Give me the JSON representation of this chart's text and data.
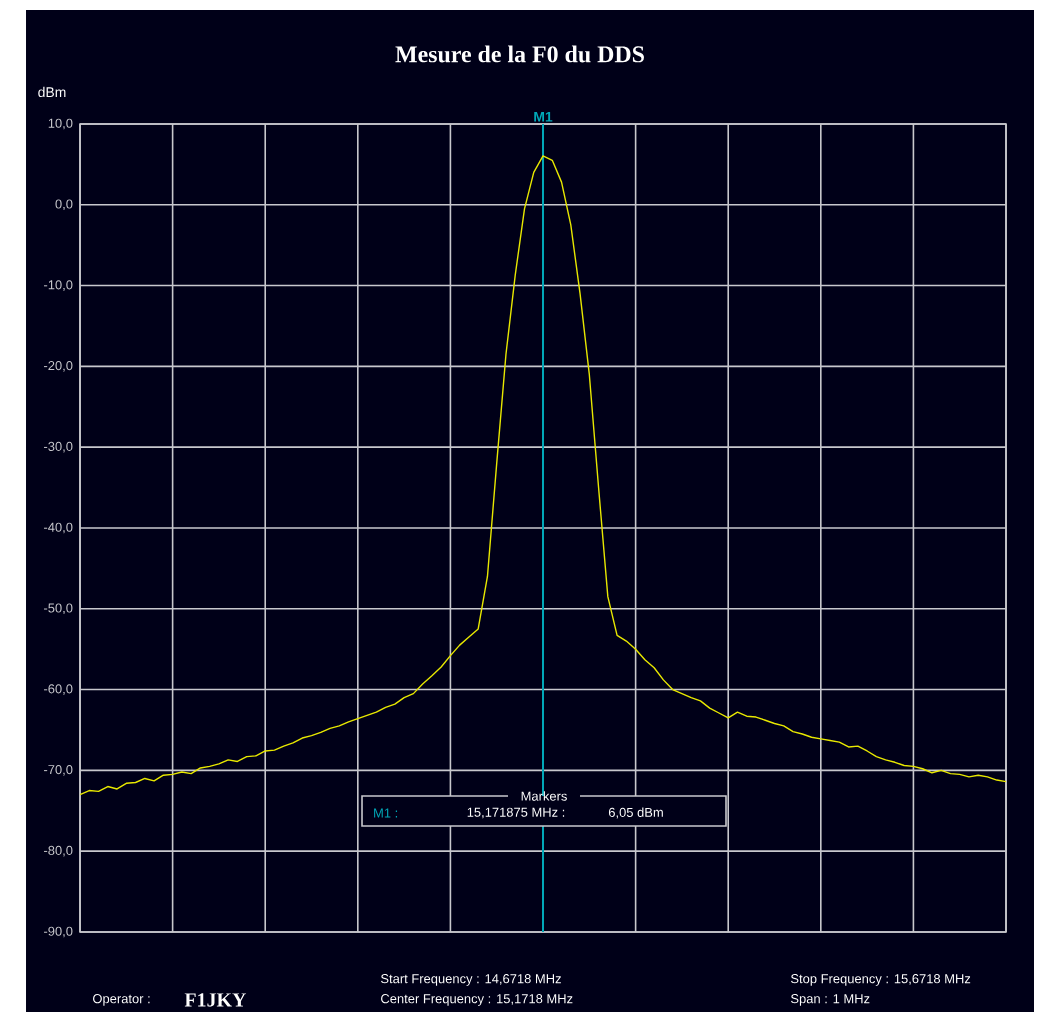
{
  "chart_data": {
    "type": "line",
    "title": "Mesure de la F0 du DDS",
    "ylabel": "dBm",
    "categories": [
      null,
      null,
      null,
      null,
      null,
      null,
      null,
      null,
      null,
      null,
      null,
      null,
      null,
      null,
      null,
      null,
      null,
      null,
      null,
      null,
      null,
      null,
      null,
      null,
      null,
      null,
      null,
      null,
      null,
      null,
      null,
      null,
      null,
      null,
      null,
      null,
      null,
      null,
      null,
      null,
      null,
      null,
      null,
      null,
      null,
      null,
      null,
      null,
      null,
      null,
      null,
      null,
      null,
      null,
      null,
      null,
      null,
      null,
      null,
      null,
      null,
      null,
      null,
      null,
      null,
      null,
      null,
      null,
      null,
      null,
      null,
      null,
      null,
      null,
      null,
      null,
      null,
      null,
      null,
      null,
      null,
      null,
      null,
      null,
      null,
      null,
      null,
      null,
      null,
      null,
      null,
      null,
      null,
      null,
      null,
      null,
      null,
      null,
      null,
      null,
      null
    ],
    "ylim": [
      -90,
      10
    ],
    "yticks": [
      {
        "value": -90,
        "label": "-90,0"
      },
      {
        "value": -80,
        "label": "-80,0"
      },
      {
        "value": -70,
        "label": "-70,0"
      },
      {
        "value": -60,
        "label": "-60,0"
      },
      {
        "value": -50,
        "label": "-50,0"
      },
      {
        "value": -40,
        "label": "-40,0"
      },
      {
        "value": -30,
        "label": "-30,0"
      },
      {
        "value": -20,
        "label": "-20,0"
      },
      {
        "value": -10,
        "label": "-10,0"
      },
      {
        "value": 0,
        "label": "0,0"
      },
      {
        "value": 10,
        "label": "10,0"
      }
    ],
    "tick_labels": "y",
    "grid": true,
    "line_style": "solid",
    "series": [
      {
        "color": "#e8e800",
        "values": [
          -73,
          -72.5,
          -72.6,
          -72,
          -72.3,
          -71.6,
          -71.5,
          -71,
          -71.3,
          -70.6,
          -70.5,
          -70.2,
          -70.4,
          -69.7,
          -69.5,
          -69.2,
          -68.7,
          -68.9,
          -68.3,
          -68.2,
          -67.6,
          -67.5,
          -67,
          -66.6,
          -66,
          -65.7,
          -65.3,
          -64.8,
          -64.5,
          -64,
          -63.6,
          -63.2,
          -62.8,
          -62.2,
          -61.8,
          -61,
          -60.5,
          -59.3,
          -58.3,
          -57.2,
          -55.8,
          -54.5,
          -53.5,
          -52.5,
          -46,
          -32,
          -18.5,
          -8.7,
          -0.5,
          4,
          6.05,
          5.5,
          2.8,
          -2.5,
          -11,
          -21,
          -35,
          -48.5,
          -53.3,
          -54,
          -55,
          -56.3,
          -57.3,
          -58.8,
          -60,
          -60.5,
          -61,
          -61.4,
          -62.3,
          -62.9,
          -63.5,
          -62.8,
          -63.3,
          -63.4,
          -63.8,
          -64.2,
          -64.5,
          -65.2,
          -65.5,
          -65.9,
          -66.1,
          -66.3,
          -66.5,
          -67.1,
          -67,
          -67.6,
          -68.3,
          -68.7,
          -69,
          -69.4,
          -69.5,
          -69.8,
          -70.3,
          -70,
          -70.4,
          -70.5,
          -70.8,
          -70.6,
          -70.8,
          -71.2,
          -71.4
        ]
      }
    ],
    "annotations": [
      {
        "text": "M1",
        "y": 6.05
      },
      "Markers",
      "M1 :",
      "15,171875 MHz :",
      "6,05 dBm",
      "Start Frequency : 14,6718 MHz",
      "Center Frequency : 15,1718 MHz",
      "Stop Frequency : 15,6718 MHz",
      "Span : 1 MHz",
      "Operator :",
      "F1JKY"
    ]
  }
}
